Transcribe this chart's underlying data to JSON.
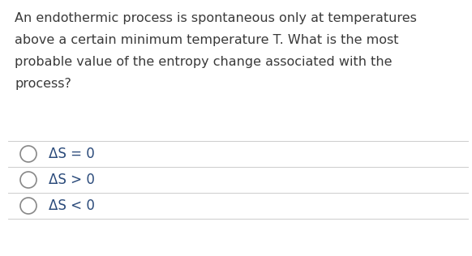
{
  "background_color": "#ffffff",
  "question_text_lines": [
    "An endothermic process is spontaneous only at temperatures",
    "above a certain minimum temperature T. What is the most",
    "probable value of the entropy change associated with the",
    "process?"
  ],
  "options": [
    "ΔS = 0",
    "ΔS > 0",
    "ΔS < 0"
  ],
  "text_color": "#3a3a3a",
  "option_text_color": "#2a4a7a",
  "line_color": "#cccccc",
  "question_fontsize": 11.5,
  "option_fontsize": 12.0,
  "circle_edge_color": "#888888",
  "figwidth": 5.82,
  "figheight": 3.16,
  "dpi": 100
}
